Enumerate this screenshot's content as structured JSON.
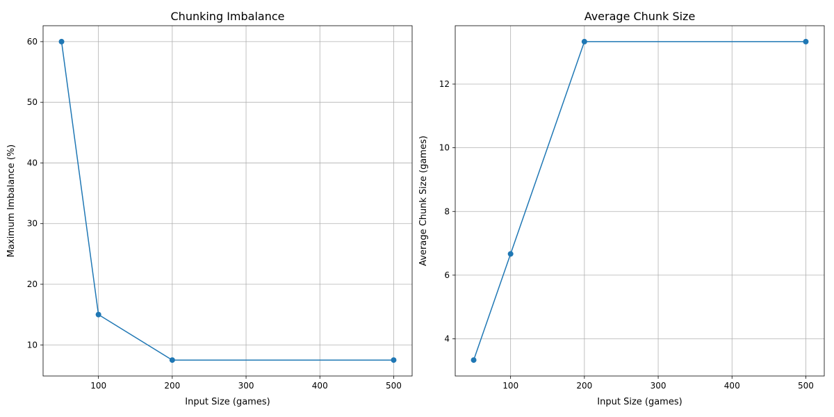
{
  "chart_data": [
    {
      "type": "line",
      "title": "Chunking Imbalance",
      "xlabel": "Input Size (games)",
      "ylabel": "Maximum Imbalance (%)",
      "x": [
        50,
        100,
        200,
        500
      ],
      "series": [
        {
          "values": [
            60.0,
            15.0,
            7.5,
            7.5
          ],
          "color": "#1f77b4",
          "marker": "circle"
        }
      ],
      "xlim": [
        25,
        525
      ],
      "ylim": [
        4.875,
        62.625
      ],
      "xticks": [
        100,
        200,
        300,
        400,
        500
      ],
      "yticks": [
        10,
        20,
        30,
        40,
        50,
        60
      ],
      "grid": true
    },
    {
      "type": "line",
      "title": "Average Chunk Size",
      "xlabel": "Input Size (games)",
      "ylabel": "Average Chunk Size (games)",
      "x": [
        50,
        100,
        200,
        500
      ],
      "series": [
        {
          "values": [
            3.333,
            6.667,
            13.333,
            13.333
          ],
          "color": "#1f77b4",
          "marker": "circle"
        }
      ],
      "xlim": [
        25,
        525
      ],
      "ylim": [
        2.833,
        13.833
      ],
      "xticks": [
        100,
        200,
        300,
        400,
        500
      ],
      "yticks": [
        4,
        6,
        8,
        10,
        12
      ],
      "grid": true
    }
  ]
}
